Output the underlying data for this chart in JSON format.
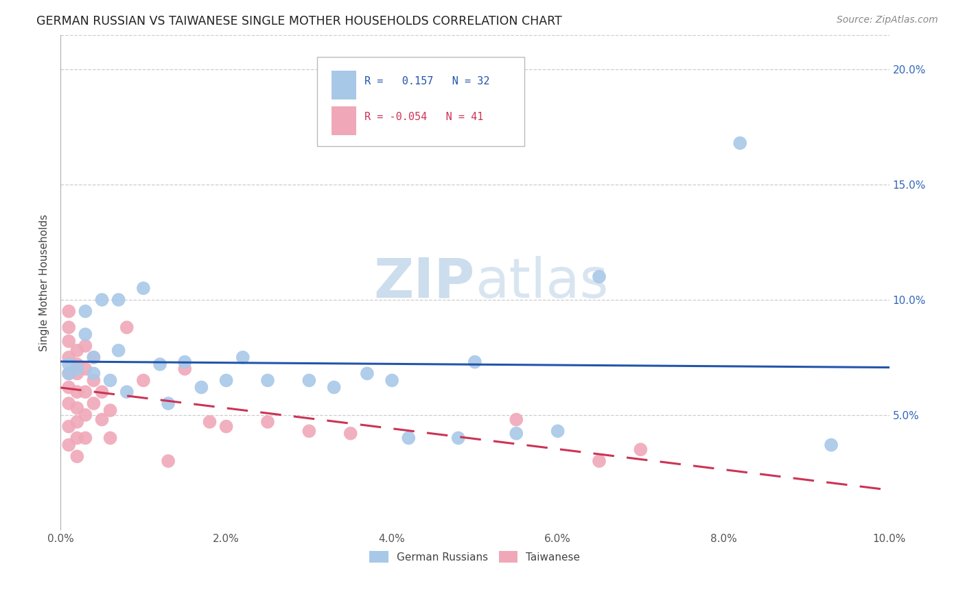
{
  "title": "GERMAN RUSSIAN VS TAIWANESE SINGLE MOTHER HOUSEHOLDS CORRELATION CHART",
  "source": "Source: ZipAtlas.com",
  "ylabel": "Single Mother Households",
  "xlabel_ticks": [
    "0.0%",
    "2.0%",
    "4.0%",
    "6.0%",
    "8.0%",
    "10.0%"
  ],
  "ylabel_right_ticks": [
    "5.0%",
    "10.0%",
    "15.0%",
    "20.0%"
  ],
  "xlim": [
    0.0,
    0.1
  ],
  "ylim": [
    0.0,
    0.215
  ],
  "blue_R": 0.157,
  "blue_N": 32,
  "pink_R": -0.054,
  "pink_N": 41,
  "blue_color": "#a8c8e8",
  "pink_color": "#f0a8b8",
  "blue_line_color": "#2255aa",
  "pink_line_color": "#cc3355",
  "watermark_zip": "ZIP",
  "watermark_atlas": "atlas",
  "watermark_color": "#ccdded",
  "legend_blue_label": "R =   0.157   N = 32",
  "legend_pink_label": "R = -0.054   N = 41",
  "bottom_legend_blue": "German Russians",
  "bottom_legend_pink": "Taiwanese",
  "blue_points_x": [
    0.001,
    0.001,
    0.002,
    0.003,
    0.003,
    0.004,
    0.004,
    0.005,
    0.006,
    0.007,
    0.007,
    0.008,
    0.01,
    0.012,
    0.013,
    0.015,
    0.017,
    0.02,
    0.022,
    0.025,
    0.03,
    0.033,
    0.037,
    0.04,
    0.042,
    0.048,
    0.05,
    0.055,
    0.06,
    0.065,
    0.082,
    0.093
  ],
  "blue_points_y": [
    0.068,
    0.072,
    0.07,
    0.095,
    0.085,
    0.075,
    0.068,
    0.1,
    0.065,
    0.078,
    0.1,
    0.06,
    0.105,
    0.072,
    0.055,
    0.073,
    0.062,
    0.065,
    0.075,
    0.065,
    0.065,
    0.062,
    0.068,
    0.065,
    0.04,
    0.04,
    0.073,
    0.042,
    0.043,
    0.11,
    0.168,
    0.037
  ],
  "pink_points_x": [
    0.001,
    0.001,
    0.001,
    0.001,
    0.001,
    0.001,
    0.001,
    0.001,
    0.001,
    0.002,
    0.002,
    0.002,
    0.002,
    0.002,
    0.002,
    0.002,
    0.002,
    0.003,
    0.003,
    0.003,
    0.003,
    0.003,
    0.004,
    0.004,
    0.004,
    0.005,
    0.005,
    0.006,
    0.006,
    0.008,
    0.01,
    0.013,
    0.015,
    0.018,
    0.02,
    0.025,
    0.03,
    0.035,
    0.055,
    0.065,
    0.07
  ],
  "pink_points_y": [
    0.095,
    0.088,
    0.082,
    0.075,
    0.068,
    0.062,
    0.055,
    0.045,
    0.037,
    0.078,
    0.072,
    0.068,
    0.06,
    0.053,
    0.047,
    0.04,
    0.032,
    0.08,
    0.07,
    0.06,
    0.05,
    0.04,
    0.075,
    0.065,
    0.055,
    0.06,
    0.048,
    0.052,
    0.04,
    0.088,
    0.065,
    0.03,
    0.07,
    0.047,
    0.045,
    0.047,
    0.043,
    0.042,
    0.048,
    0.03,
    0.035
  ]
}
